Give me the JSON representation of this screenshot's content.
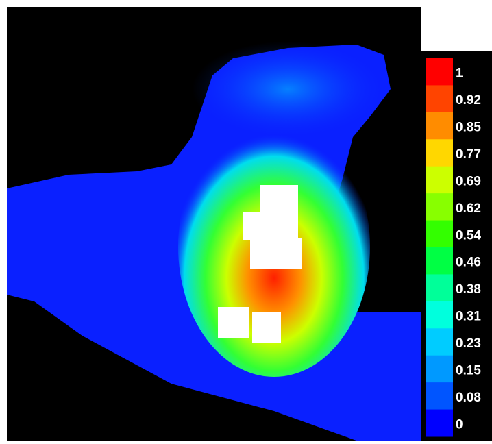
{
  "colorbar": {
    "ticks": [
      1,
      0.92,
      0.85,
      0.77,
      0.69,
      0.62,
      0.54,
      0.46,
      0.38,
      0.31,
      0.23,
      0.15,
      0.08,
      0
    ],
    "colors": [
      "#ff0000",
      "#ff4400",
      "#ff8c00",
      "#ffd700",
      "#ccff00",
      "#88ff00",
      "#33ff00",
      "#00ff44",
      "#00ff99",
      "#00ffdd",
      "#00ccff",
      "#0099ff",
      "#0055ff",
      "#0000ff"
    ]
  }
}
